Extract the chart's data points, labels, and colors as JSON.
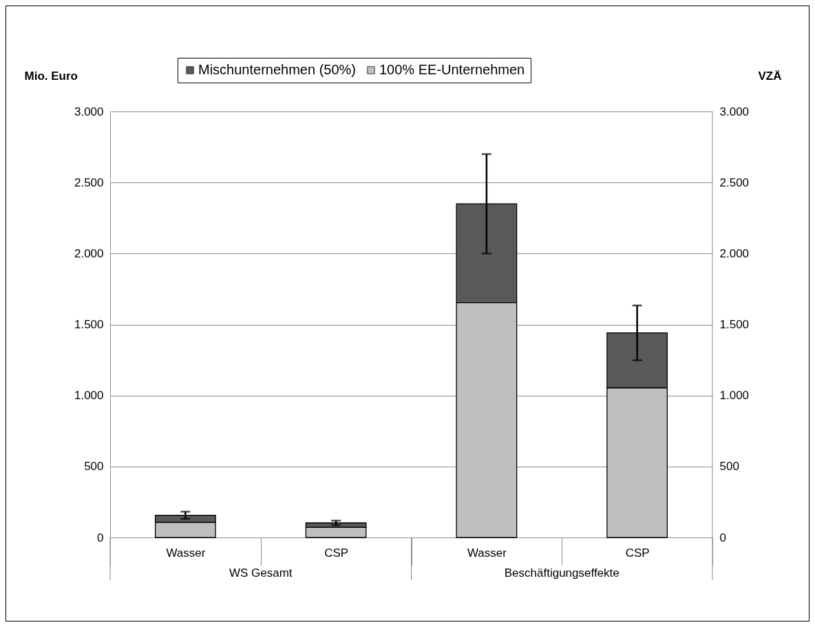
{
  "chart_data": {
    "type": "bar",
    "stacked": true,
    "ylabel": "Mio. Euro",
    "y2label": "VZÄ",
    "categories": [
      "Wasser",
      "CSP",
      "Wasser",
      "CSP"
    ],
    "series": [
      {
        "name": "100% EE-Unternehmen",
        "color": "#bfbfbf",
        "values": [
          107,
          72,
          1654,
          1054
        ]
      },
      {
        "name": "Mischunternehmen (50%)",
        "color": "#595959",
        "values": [
          50,
          31,
          696,
          387
        ],
        "errors": [
          25,
          16,
          350,
          193
        ]
      }
    ],
    "annotations": [
      "WS Gesamt",
      "Beschäftigungseffekte"
    ],
    "ylim": [
      0,
      3000
    ],
    "yticks": [
      0,
      500,
      {
        "value": 1000,
        "label": "1.000"
      },
      {
        "value": 1500,
        "label": "1.500"
      },
      {
        "value": 2000,
        "label": "2.000"
      },
      {
        "value": 2500,
        "label": "2.500"
      },
      {
        "value": 3000,
        "label": "3.000"
      }
    ],
    "y2lim": [
      0,
      3000
    ],
    "y2ticks": [
      0,
      500,
      {
        "value": 1000,
        "label": "1.000"
      },
      {
        "value": 1500,
        "label": "1.500"
      },
      {
        "value": 2000,
        "label": "2.000"
      },
      {
        "value": 2500,
        "label": "2.500"
      },
      {
        "value": 3000,
        "label": "3.000"
      }
    ],
    "grid": "y",
    "legend": "top"
  }
}
